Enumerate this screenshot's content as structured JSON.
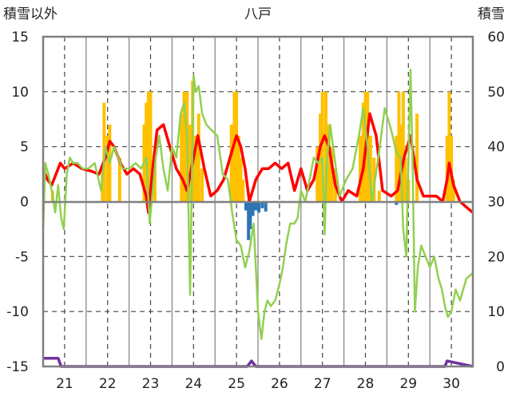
{
  "chart_data": {
    "type": "bar+line",
    "title": "八戸",
    "left_axis_label": "積雪以外",
    "right_axis_label": "積雪",
    "left_ylim": [
      -15,
      15
    ],
    "left_yticks": [
      "15",
      "10",
      "5",
      "0",
      "-5",
      "-10",
      "-15"
    ],
    "right_ylim": [
      0,
      60
    ],
    "right_yticks": [
      "60",
      "50",
      "40",
      "30",
      "20",
      "10",
      "0"
    ],
    "x_ticks": [
      "21",
      "22",
      "23",
      "24",
      "25",
      "26",
      "27",
      "28",
      "29",
      "30"
    ],
    "x_range": [
      20.5,
      30.5
    ],
    "grid": true,
    "colors": {
      "temperature": "#ff0000",
      "green_series": "#92d050",
      "precip_bars": "#ffc000",
      "negative_bars": "#2e75b6",
      "snow_depth": "#7030a0",
      "frame": "#808080",
      "grid": "#444444"
    },
    "series": [
      {
        "axis": "left",
        "kind": "bar",
        "color": "#ffc000",
        "x": [
          20.72,
          21.88,
          21.92,
          22.0,
          22.05,
          22.28,
          22.85,
          22.9,
          22.95,
          23.0,
          23.1,
          23.72,
          23.78,
          23.85,
          23.92,
          23.98,
          24.05,
          24.12,
          24.2,
          24.88,
          24.95,
          25.0,
          25.05,
          25.1,
          25.15,
          26.88,
          26.95,
          27.0,
          27.08,
          27.15,
          27.22,
          27.3,
          27.88,
          27.95,
          28.0,
          28.05,
          28.12,
          28.2,
          28.32,
          28.72,
          28.78,
          28.82,
          28.88,
          28.93,
          29.0,
          29.2,
          29.9,
          29.95,
          30.0,
          30.05
        ],
        "values": [
          1,
          3,
          9,
          6,
          7,
          4,
          7,
          9,
          10,
          10,
          5,
          8,
          10,
          10,
          7,
          11,
          6,
          8,
          3,
          7,
          10,
          10,
          6,
          4,
          2,
          5,
          8,
          10,
          10,
          7,
          5,
          3,
          6,
          9,
          10,
          10,
          6,
          4,
          1,
          6,
          10,
          7,
          10,
          4,
          2,
          8,
          6,
          10,
          6,
          2
        ]
      },
      {
        "axis": "left",
        "kind": "bar",
        "color": "#2e75b6",
        "x": [
          25.22,
          25.28,
          25.32,
          25.38,
          25.45,
          25.52,
          25.6,
          25.68,
          28.72
        ],
        "values": [
          -0.8,
          -3.5,
          -2.5,
          -1.3,
          -0.8,
          -1.0,
          -0.6,
          -0.9,
          -0.3
        ]
      },
      {
        "axis": "left",
        "kind": "line",
        "color": "#ff0000",
        "x": [
          20.5,
          20.6,
          20.7,
          20.8,
          20.9,
          21.0,
          21.2,
          21.4,
          21.6,
          21.8,
          21.95,
          22.05,
          22.15,
          22.3,
          22.45,
          22.6,
          22.75,
          22.9,
          22.95,
          23.05,
          23.15,
          23.3,
          23.45,
          23.6,
          23.75,
          23.85,
          23.95,
          24.1,
          24.25,
          24.4,
          24.55,
          24.7,
          24.85,
          25.0,
          25.1,
          25.2,
          25.3,
          25.45,
          25.6,
          25.75,
          25.9,
          26.05,
          26.2,
          26.35,
          26.5,
          26.65,
          26.8,
          26.95,
          27.05,
          27.15,
          27.3,
          27.45,
          27.6,
          27.8,
          27.95,
          28.1,
          28.25,
          28.4,
          28.6,
          28.75,
          28.9,
          29.05,
          29.2,
          29.35,
          29.5,
          29.65,
          29.8,
          29.9,
          29.95,
          30.05,
          30.2,
          30.35,
          30.5
        ],
        "values": [
          3.0,
          2.0,
          1.5,
          2.5,
          3.5,
          3.0,
          3.5,
          3.0,
          2.8,
          2.5,
          4.0,
          5.5,
          5.0,
          3.5,
          2.5,
          3.0,
          2.5,
          0.5,
          -1.0,
          3.0,
          6.5,
          7.0,
          5.0,
          3.0,
          2.0,
          1.0,
          3.0,
          6.0,
          3.0,
          0.5,
          1.0,
          2.0,
          4.0,
          6.0,
          5.0,
          3.0,
          0.0,
          2.0,
          3.0,
          3.0,
          3.5,
          3.0,
          3.5,
          1.0,
          3.0,
          1.0,
          2.0,
          5.0,
          6.0,
          5.0,
          1.5,
          0.0,
          1.0,
          0.5,
          3.0,
          8.0,
          6.0,
          1.0,
          0.5,
          1.0,
          4.0,
          6.0,
          2.0,
          0.5,
          0.5,
          0.5,
          0.0,
          2.0,
          3.5,
          1.5,
          0.0,
          -0.5,
          -1.0
        ]
      },
      {
        "axis": "left",
        "kind": "line",
        "color": "#92d050",
        "x": [
          20.5,
          20.55,
          20.62,
          20.7,
          20.78,
          20.85,
          20.92,
          20.98,
          21.05,
          21.12,
          21.2,
          21.3,
          21.42,
          21.55,
          21.7,
          21.85,
          21.95,
          22.05,
          22.15,
          22.25,
          22.35,
          22.5,
          22.65,
          22.78,
          22.9,
          22.98,
          23.05,
          23.12,
          23.2,
          23.3,
          23.4,
          23.5,
          23.6,
          23.7,
          23.78,
          23.85,
          23.92,
          24.0,
          24.05,
          24.12,
          24.2,
          24.3,
          24.42,
          24.55,
          24.68,
          24.8,
          24.9,
          25.0,
          25.1,
          25.2,
          25.3,
          25.4,
          25.5,
          25.58,
          25.65,
          25.72,
          25.8,
          25.9,
          26.0,
          26.08,
          26.15,
          26.25,
          26.35,
          26.42,
          26.5,
          26.6,
          26.7,
          26.8,
          26.9,
          27.0,
          27.05,
          27.1,
          27.18,
          27.28,
          27.4,
          27.55,
          27.7,
          27.85,
          27.95,
          28.05,
          28.15,
          28.3,
          28.45,
          28.6,
          28.72,
          28.82,
          28.88,
          28.95,
          29.05,
          29.1,
          29.15,
          29.22,
          29.3,
          29.4,
          29.5,
          29.6,
          29.7,
          29.78,
          29.85,
          29.92,
          30.0,
          30.1,
          30.2,
          30.35,
          30.5
        ],
        "values": [
          -2.5,
          3.5,
          2.5,
          1.0,
          -1.0,
          1.5,
          -1.5,
          -2.5,
          2.5,
          4.0,
          3.5,
          3.5,
          3.0,
          3.0,
          3.5,
          1.0,
          5.0,
          3.5,
          5.0,
          4.0,
          3.0,
          3.0,
          3.5,
          3.0,
          4.0,
          -2.0,
          1.0,
          4.0,
          6.0,
          3.0,
          1.0,
          5.0,
          4.0,
          8.0,
          9.0,
          6.0,
          -8.5,
          11.5,
          10.0,
          10.5,
          8.0,
          7.0,
          6.5,
          6.0,
          2.5,
          2.0,
          -1.0,
          -3.5,
          -4.0,
          -6.0,
          -4.5,
          -2.0,
          -10.0,
          -12.5,
          -10.0,
          -9.0,
          -9.5,
          -9.0,
          -7.5,
          -6.0,
          -4.0,
          -2.0,
          -2.0,
          -1.5,
          1.0,
          0.0,
          2.0,
          4.0,
          3.5,
          4.0,
          -3.0,
          3.5,
          7.0,
          4.0,
          0.5,
          2.0,
          3.0,
          6.0,
          8.5,
          5.0,
          0.0,
          4.0,
          8.5,
          6.5,
          4.5,
          4.0,
          -2.5,
          -5.0,
          12.0,
          3.0,
          -10.0,
          -6.0,
          -4.0,
          -5.0,
          -6.0,
          -5.0,
          -7.0,
          -8.0,
          -9.5,
          -10.5,
          -10.0,
          -8.0,
          -9.0,
          -7.0,
          -6.5
        ]
      },
      {
        "axis": "right",
        "kind": "line",
        "color": "#7030a0",
        "x": [
          20.5,
          20.85,
          20.92,
          21.0,
          25.25,
          25.35,
          25.45,
          29.8,
          29.85,
          29.9,
          30.5
        ],
        "values": [
          1.5,
          1.5,
          0,
          0,
          0,
          1.0,
          0,
          0,
          0,
          1.0,
          0
        ]
      }
    ]
  }
}
